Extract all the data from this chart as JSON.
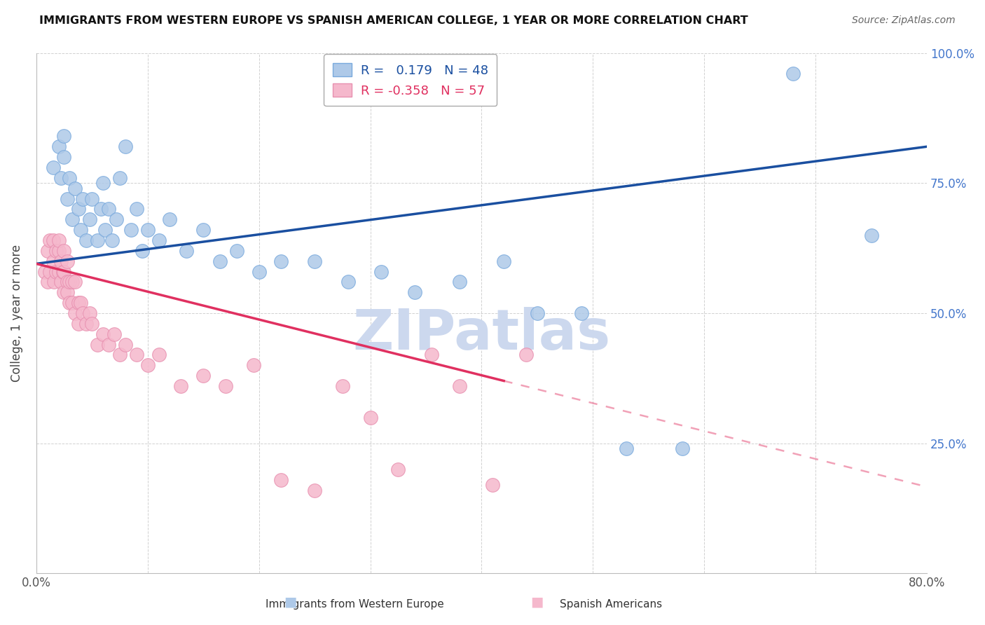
{
  "title": "IMMIGRANTS FROM WESTERN EUROPE VS SPANISH AMERICAN COLLEGE, 1 YEAR OR MORE CORRELATION CHART",
  "source": "Source: ZipAtlas.com",
  "ylabel": "College, 1 year or more",
  "legend_label1": "Immigrants from Western Europe",
  "legend_label2": "Spanish Americans",
  "r1": 0.179,
  "n1": 48,
  "r2": -0.358,
  "n2": 57,
  "xlim": [
    0.0,
    0.8
  ],
  "ylim": [
    0.0,
    1.0
  ],
  "xticks": [
    0.0,
    0.1,
    0.2,
    0.3,
    0.4,
    0.5,
    0.6,
    0.7,
    0.8
  ],
  "yticks": [
    0.0,
    0.25,
    0.5,
    0.75,
    1.0
  ],
  "blue_color": "#aec9e8",
  "blue_edge_color": "#7aaadd",
  "pink_color": "#f5b8cc",
  "pink_edge_color": "#e890b0",
  "blue_line_color": "#1a4fa0",
  "pink_line_color": "#e03060",
  "watermark": "ZIPatlas",
  "watermark_color": "#ccd8ee",
  "blue_line_x0": 0.0,
  "blue_line_y0": 0.595,
  "blue_line_x1": 0.8,
  "blue_line_y1": 0.82,
  "pink_line_x0": 0.0,
  "pink_line_y0": 0.595,
  "pink_line_x1": 0.42,
  "pink_line_y1": 0.37,
  "blue_x": [
    0.015,
    0.02,
    0.022,
    0.025,
    0.025,
    0.028,
    0.03,
    0.032,
    0.035,
    0.038,
    0.04,
    0.042,
    0.045,
    0.048,
    0.05,
    0.055,
    0.058,
    0.06,
    0.062,
    0.065,
    0.068,
    0.072,
    0.075,
    0.08,
    0.085,
    0.09,
    0.095,
    0.1,
    0.11,
    0.12,
    0.135,
    0.15,
    0.165,
    0.18,
    0.2,
    0.22,
    0.25,
    0.28,
    0.31,
    0.34,
    0.38,
    0.42,
    0.45,
    0.49,
    0.53,
    0.58,
    0.68,
    0.75
  ],
  "blue_y": [
    0.78,
    0.82,
    0.76,
    0.8,
    0.84,
    0.72,
    0.76,
    0.68,
    0.74,
    0.7,
    0.66,
    0.72,
    0.64,
    0.68,
    0.72,
    0.64,
    0.7,
    0.75,
    0.66,
    0.7,
    0.64,
    0.68,
    0.76,
    0.82,
    0.66,
    0.7,
    0.62,
    0.66,
    0.64,
    0.68,
    0.62,
    0.66,
    0.6,
    0.62,
    0.58,
    0.6,
    0.6,
    0.56,
    0.58,
    0.54,
    0.56,
    0.6,
    0.5,
    0.5,
    0.24,
    0.24,
    0.96,
    0.65
  ],
  "pink_x": [
    0.008,
    0.01,
    0.01,
    0.012,
    0.012,
    0.015,
    0.015,
    0.016,
    0.018,
    0.018,
    0.02,
    0.02,
    0.02,
    0.022,
    0.022,
    0.024,
    0.025,
    0.025,
    0.025,
    0.028,
    0.028,
    0.028,
    0.03,
    0.03,
    0.032,
    0.032,
    0.035,
    0.035,
    0.038,
    0.038,
    0.04,
    0.042,
    0.045,
    0.048,
    0.05,
    0.055,
    0.06,
    0.065,
    0.07,
    0.075,
    0.08,
    0.09,
    0.1,
    0.11,
    0.13,
    0.15,
    0.17,
    0.195,
    0.22,
    0.25,
    0.275,
    0.3,
    0.325,
    0.355,
    0.38,
    0.41,
    0.44
  ],
  "pink_y": [
    0.58,
    0.62,
    0.56,
    0.64,
    0.58,
    0.64,
    0.6,
    0.56,
    0.62,
    0.58,
    0.62,
    0.64,
    0.58,
    0.56,
    0.6,
    0.58,
    0.62,
    0.58,
    0.54,
    0.56,
    0.6,
    0.54,
    0.56,
    0.52,
    0.56,
    0.52,
    0.56,
    0.5,
    0.52,
    0.48,
    0.52,
    0.5,
    0.48,
    0.5,
    0.48,
    0.44,
    0.46,
    0.44,
    0.46,
    0.42,
    0.44,
    0.42,
    0.4,
    0.42,
    0.36,
    0.38,
    0.36,
    0.4,
    0.18,
    0.16,
    0.36,
    0.3,
    0.2,
    0.42,
    0.36,
    0.17,
    0.42
  ]
}
